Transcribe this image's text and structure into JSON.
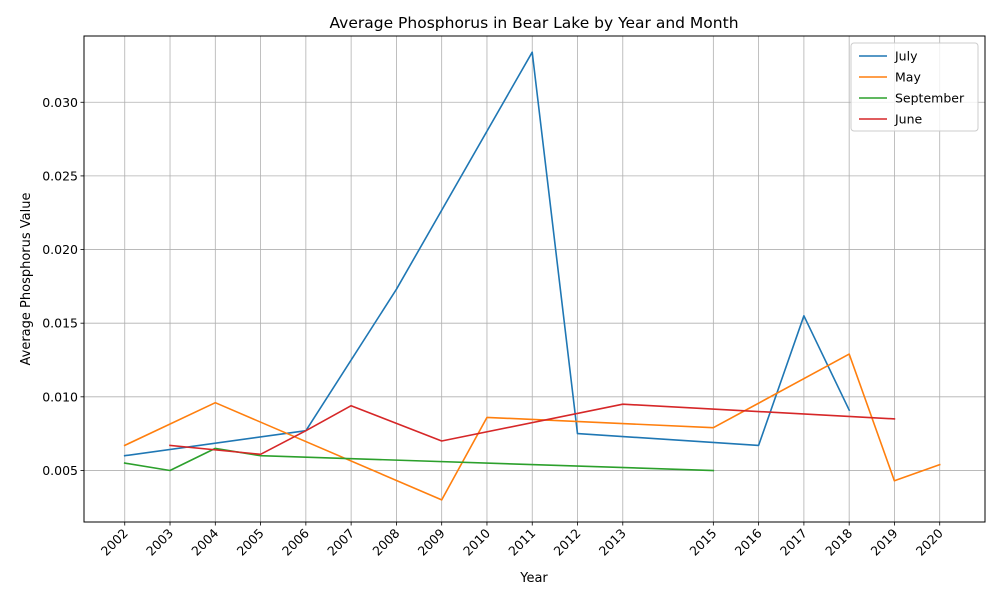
{
  "chart_data": {
    "type": "line",
    "title": "Average Phosphorus in Bear Lake by Year and Month",
    "xlabel": "Year",
    "ylabel": "Average Phosphorus Value",
    "xlim": [
      2001.1,
      2021.0
    ],
    "ylim": [
      0.0015,
      0.0345
    ],
    "grid": true,
    "legend_position": "top-right",
    "x_tick_labels": [
      2002,
      2003,
      2004,
      2005,
      2006,
      2007,
      2008,
      2009,
      2010,
      2011,
      2012,
      2013,
      2015,
      2016,
      2017,
      2018,
      2019,
      2020
    ],
    "y_ticks": [
      {
        "value": 0.005,
        "label": "0.005"
      },
      {
        "value": 0.01,
        "label": "0.010"
      },
      {
        "value": 0.015,
        "label": "0.015"
      },
      {
        "value": 0.02,
        "label": "0.020"
      },
      {
        "value": 0.025,
        "label": "0.025"
      },
      {
        "value": 0.03,
        "label": "0.030"
      }
    ],
    "series": [
      {
        "name": "July",
        "color": "#1f77b4",
        "x": [
          2002,
          2006,
          2008,
          2011,
          2012,
          2016,
          2017,
          2018
        ],
        "y": [
          0.006,
          0.0077,
          0.0173,
          0.0334,
          0.0075,
          0.0067,
          0.0155,
          0.0091
        ]
      },
      {
        "name": "May",
        "color": "#ff7f0e",
        "x": [
          2002,
          2004,
          2009,
          2010,
          2015,
          2018,
          2019,
          2020
        ],
        "y": [
          0.0067,
          0.0096,
          0.003,
          0.0086,
          0.0079,
          0.0129,
          0.0043,
          0.0054
        ]
      },
      {
        "name": "September",
        "color": "#2ca02c",
        "x": [
          2002,
          2003,
          2004,
          2005,
          2015
        ],
        "y": [
          0.0055,
          0.005,
          0.0065,
          0.006,
          0.005
        ]
      },
      {
        "name": "June",
        "color": "#d62728",
        "x": [
          2003,
          2005,
          2006,
          2007,
          2009,
          2013,
          2019
        ],
        "y": [
          0.0067,
          0.0061,
          0.0077,
          0.0094,
          0.007,
          0.0095,
          0.0085
        ]
      }
    ]
  }
}
